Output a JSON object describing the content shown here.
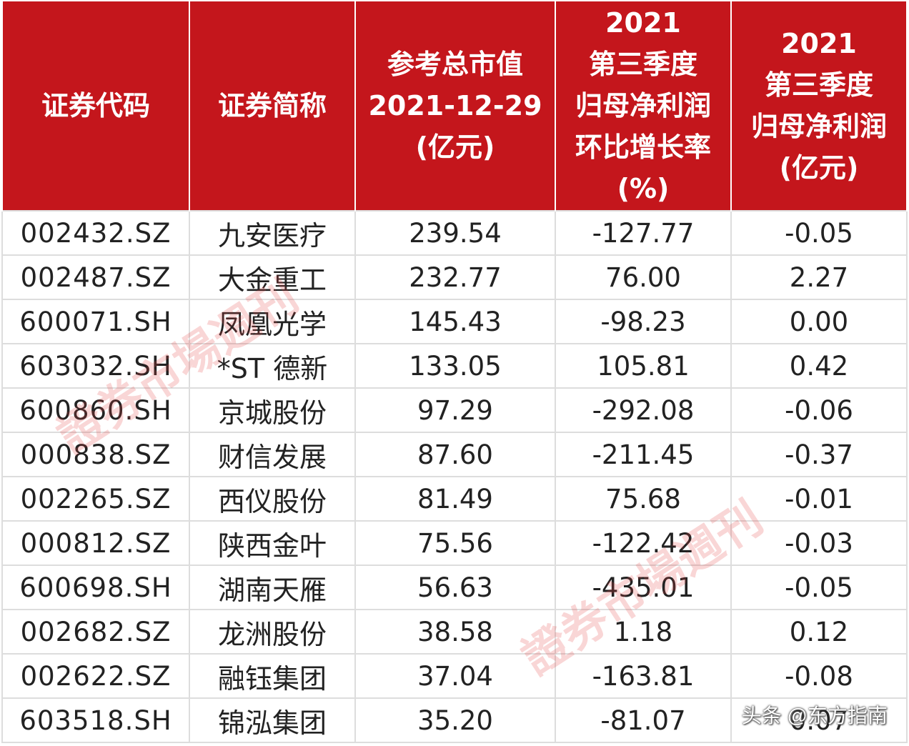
{
  "table": {
    "headers": [
      [
        "证券代码"
      ],
      [
        "证券简称"
      ],
      [
        "参考总市值",
        "2021-12-29",
        "(亿元)"
      ],
      [
        "2021",
        "第三季度",
        "归母净利润",
        "环比增长率",
        "(%)"
      ],
      [
        "2021",
        "第三季度",
        "归母净利润",
        "(亿元)"
      ]
    ],
    "rows": [
      {
        "code": "002432.SZ",
        "name": "九安医疗",
        "mcap": "239.54",
        "growth": "-127.77",
        "profit": "-0.05"
      },
      {
        "code": "002487.SZ",
        "name": "大金重工",
        "mcap": "232.77",
        "growth": "76.00",
        "profit": "2.27"
      },
      {
        "code": "600071.SH",
        "name": "凤凰光学",
        "mcap": "145.43",
        "growth": "-98.23",
        "profit": "0.00"
      },
      {
        "code": "603032.SH",
        "name": "*ST 德新",
        "mcap": "133.05",
        "growth": "105.81",
        "profit": "0.42"
      },
      {
        "code": "600860.SH",
        "name": "京城股份",
        "mcap": "97.29",
        "growth": "-292.08",
        "profit": "-0.06"
      },
      {
        "code": "000838.SZ",
        "name": "财信发展",
        "mcap": "87.60",
        "growth": "-211.45",
        "profit": "-0.37"
      },
      {
        "code": "002265.SZ",
        "name": "西仪股份",
        "mcap": "81.49",
        "growth": "75.68",
        "profit": "-0.01"
      },
      {
        "code": "000812.SZ",
        "name": "陕西金叶",
        "mcap": "75.56",
        "growth": "-122.42",
        "profit": "-0.03"
      },
      {
        "code": "600698.SH",
        "name": "湖南天雁",
        "mcap": "56.63",
        "growth": "-435.01",
        "profit": "-0.05"
      },
      {
        "code": "002682.SZ",
        "name": "龙洲股份",
        "mcap": "38.58",
        "growth": "1.18",
        "profit": "0.12"
      },
      {
        "code": "002622.SZ",
        "name": "融钰集团",
        "mcap": "37.04",
        "growth": "-163.81",
        "profit": "-0.08"
      },
      {
        "code": "603518.SH",
        "name": "锦泓集团",
        "mcap": "35.20",
        "growth": "-81.07",
        "profit": "0.07"
      }
    ]
  },
  "watermark": {
    "text": "證券市場週刊"
  },
  "credit": "头条 @东方指南",
  "colors": {
    "header_bg": "#c4161c",
    "header_text": "#ffffff",
    "watermark": "#e24646"
  }
}
